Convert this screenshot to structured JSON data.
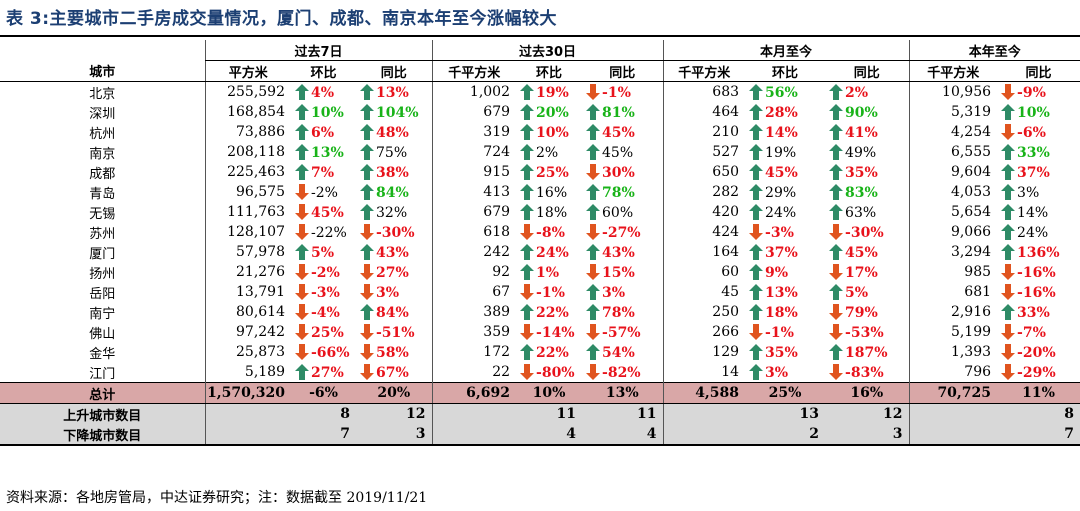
{
  "title": "表 3:主要城市二手房成交量情况，厦门、成都、南京本年至今涨幅较大",
  "groups": {
    "g7": "过去7日",
    "g30": "过去30日",
    "gm": "本月至今",
    "gy": "本年至今"
  },
  "subheaders": {
    "city": "城市",
    "c1": "平方米",
    "c2": "环比",
    "c3": "同比",
    "c4": "千平方米",
    "c5": "环比",
    "c6": "同比",
    "c7": "千平方米",
    "c8": "环比",
    "c9": "同比",
    "c10": "千平方米",
    "c11": "同比"
  },
  "colors": {
    "up": "#2e8b66",
    "down": "#e0541f",
    "red_text": "#e8121b",
    "green_text": "#18b318",
    "total_bg": "#d9a7a7",
    "count_bg": "#d8d8d8"
  },
  "rows": [
    {
      "city": "北京",
      "v7": "255,592",
      "h7": {
        "t": "4%",
        "a": "up",
        "c": "red"
      },
      "t7": {
        "t": "13%",
        "a": "up",
        "c": "red"
      },
      "v30": "1,002",
      "h30": {
        "t": "19%",
        "a": "up",
        "c": "red"
      },
      "t30": {
        "t": "-1%",
        "a": "down",
        "c": "red"
      },
      "vm": "683",
      "hm": {
        "t": "56%",
        "a": "up",
        "c": "green"
      },
      "tm": {
        "t": "2%",
        "a": "up",
        "c": "red"
      },
      "vy": "10,956",
      "ty": {
        "t": "-9%",
        "a": "down",
        "c": "red"
      }
    },
    {
      "city": "深圳",
      "v7": "168,854",
      "h7": {
        "t": "10%",
        "a": "up",
        "c": "green"
      },
      "t7": {
        "t": "104%",
        "a": "up",
        "c": "green"
      },
      "v30": "679",
      "h30": {
        "t": "20%",
        "a": "up",
        "c": "green"
      },
      "t30": {
        "t": "81%",
        "a": "up",
        "c": "green"
      },
      "vm": "464",
      "hm": {
        "t": "28%",
        "a": "up",
        "c": "red"
      },
      "tm": {
        "t": "90%",
        "a": "up",
        "c": "green"
      },
      "vy": "5,319",
      "ty": {
        "t": "10%",
        "a": "up",
        "c": "green"
      }
    },
    {
      "city": "杭州",
      "v7": "73,886",
      "h7": {
        "t": "6%",
        "a": "up",
        "c": "red"
      },
      "t7": {
        "t": "48%",
        "a": "up",
        "c": "red"
      },
      "v30": "319",
      "h30": {
        "t": "10%",
        "a": "up",
        "c": "red"
      },
      "t30": {
        "t": "45%",
        "a": "up",
        "c": "red"
      },
      "vm": "210",
      "hm": {
        "t": "14%",
        "a": "up",
        "c": "red"
      },
      "tm": {
        "t": "41%",
        "a": "up",
        "c": "red"
      },
      "vy": "4,254",
      "ty": {
        "t": "-6%",
        "a": "down",
        "c": "red"
      }
    },
    {
      "city": "南京",
      "v7": "208,118",
      "h7": {
        "t": "13%",
        "a": "up",
        "c": "green"
      },
      "t7": {
        "t": "75%",
        "a": "up",
        "c": "black"
      },
      "v30": "724",
      "h30": {
        "t": "2%",
        "a": "up",
        "c": "black"
      },
      "t30": {
        "t": "45%",
        "a": "up",
        "c": "black"
      },
      "vm": "527",
      "hm": {
        "t": "19%",
        "a": "up",
        "c": "black"
      },
      "tm": {
        "t": "49%",
        "a": "up",
        "c": "black"
      },
      "vy": "6,555",
      "ty": {
        "t": "33%",
        "a": "up",
        "c": "green"
      }
    },
    {
      "city": "成都",
      "v7": "225,463",
      "h7": {
        "t": "7%",
        "a": "up",
        "c": "red"
      },
      "t7": {
        "t": "38%",
        "a": "up",
        "c": "red"
      },
      "v30": "915",
      "h30": {
        "t": "25%",
        "a": "up",
        "c": "red"
      },
      "t30": {
        "t": "30%",
        "a": "down",
        "c": "red"
      },
      "vm": "650",
      "hm": {
        "t": "45%",
        "a": "up",
        "c": "red"
      },
      "tm": {
        "t": "35%",
        "a": "up",
        "c": "red"
      },
      "vy": "9,604",
      "ty": {
        "t": "37%",
        "a": "up",
        "c": "red"
      }
    },
    {
      "city": "青岛",
      "v7": "96,575",
      "h7": {
        "t": "-2%",
        "a": "down",
        "c": "black"
      },
      "t7": {
        "t": "84%",
        "a": "up",
        "c": "green"
      },
      "v30": "413",
      "h30": {
        "t": "16%",
        "a": "up",
        "c": "black"
      },
      "t30": {
        "t": "78%",
        "a": "up",
        "c": "green"
      },
      "vm": "282",
      "hm": {
        "t": "29%",
        "a": "up",
        "c": "black"
      },
      "tm": {
        "t": "83%",
        "a": "up",
        "c": "green"
      },
      "vy": "4,053",
      "ty": {
        "t": "3%",
        "a": "up",
        "c": "black"
      }
    },
    {
      "city": "无锡",
      "v7": "111,763",
      "h7": {
        "t": "45%",
        "a": "down",
        "c": "red"
      },
      "t7": {
        "t": "32%",
        "a": "up",
        "c": "black"
      },
      "v30": "679",
      "h30": {
        "t": "18%",
        "a": "up",
        "c": "black"
      },
      "t30": {
        "t": "60%",
        "a": "up",
        "c": "black"
      },
      "vm": "420",
      "hm": {
        "t": "24%",
        "a": "up",
        "c": "black"
      },
      "tm": {
        "t": "63%",
        "a": "up",
        "c": "black"
      },
      "vy": "5,654",
      "ty": {
        "t": "14%",
        "a": "up",
        "c": "black"
      }
    },
    {
      "city": "苏州",
      "v7": "128,107",
      "h7": {
        "t": "-22%",
        "a": "down",
        "c": "black"
      },
      "t7": {
        "t": "-30%",
        "a": "down",
        "c": "red"
      },
      "v30": "618",
      "h30": {
        "t": "-8%",
        "a": "down",
        "c": "red"
      },
      "t30": {
        "t": "-27%",
        "a": "down",
        "c": "red"
      },
      "vm": "424",
      "hm": {
        "t": "-3%",
        "a": "down",
        "c": "red"
      },
      "tm": {
        "t": "-30%",
        "a": "down",
        "c": "red"
      },
      "vy": "9,066",
      "ty": {
        "t": "24%",
        "a": "up",
        "c": "black"
      }
    },
    {
      "city": "厦门",
      "v7": "57,978",
      "h7": {
        "t": "5%",
        "a": "up",
        "c": "red"
      },
      "t7": {
        "t": "43%",
        "a": "up",
        "c": "red"
      },
      "v30": "242",
      "h30": {
        "t": "24%",
        "a": "up",
        "c": "red"
      },
      "t30": {
        "t": "43%",
        "a": "up",
        "c": "red"
      },
      "vm": "164",
      "hm": {
        "t": "37%",
        "a": "up",
        "c": "red"
      },
      "tm": {
        "t": "45%",
        "a": "up",
        "c": "red"
      },
      "vy": "3,294",
      "ty": {
        "t": "136%",
        "a": "up",
        "c": "red"
      }
    },
    {
      "city": "扬州",
      "v7": "21,276",
      "h7": {
        "t": "-2%",
        "a": "down",
        "c": "red"
      },
      "t7": {
        "t": "27%",
        "a": "down",
        "c": "red"
      },
      "v30": "92",
      "h30": {
        "t": "1%",
        "a": "up",
        "c": "red"
      },
      "t30": {
        "t": "15%",
        "a": "down",
        "c": "red"
      },
      "vm": "60",
      "hm": {
        "t": "9%",
        "a": "up",
        "c": "red"
      },
      "tm": {
        "t": "17%",
        "a": "down",
        "c": "red"
      },
      "vy": "985",
      "ty": {
        "t": "-16%",
        "a": "down",
        "c": "red"
      }
    },
    {
      "city": "岳阳",
      "v7": "13,791",
      "h7": {
        "t": "-3%",
        "a": "down",
        "c": "red"
      },
      "t7": {
        "t": "3%",
        "a": "down",
        "c": "red"
      },
      "v30": "67",
      "h30": {
        "t": "-1%",
        "a": "down",
        "c": "red"
      },
      "t30": {
        "t": "3%",
        "a": "up",
        "c": "red"
      },
      "vm": "45",
      "hm": {
        "t": "13%",
        "a": "up",
        "c": "red"
      },
      "tm": {
        "t": "5%",
        "a": "up",
        "c": "red"
      },
      "vy": "681",
      "ty": {
        "t": "-16%",
        "a": "down",
        "c": "red"
      }
    },
    {
      "city": "南宁",
      "v7": "80,614",
      "h7": {
        "t": "-4%",
        "a": "down",
        "c": "red"
      },
      "t7": {
        "t": "84%",
        "a": "up",
        "c": "red"
      },
      "v30": "389",
      "h30": {
        "t": "22%",
        "a": "up",
        "c": "red"
      },
      "t30": {
        "t": "78%",
        "a": "up",
        "c": "red"
      },
      "vm": "250",
      "hm": {
        "t": "18%",
        "a": "up",
        "c": "red"
      },
      "tm": {
        "t": "79%",
        "a": "down",
        "c": "red"
      },
      "vy": "2,916",
      "ty": {
        "t": "33%",
        "a": "up",
        "c": "red"
      }
    },
    {
      "city": "佛山",
      "v7": "97,242",
      "h7": {
        "t": "25%",
        "a": "down",
        "c": "red"
      },
      "t7": {
        "t": "-51%",
        "a": "down",
        "c": "red"
      },
      "v30": "359",
      "h30": {
        "t": "-14%",
        "a": "down",
        "c": "red"
      },
      "t30": {
        "t": "-57%",
        "a": "down",
        "c": "red"
      },
      "vm": "266",
      "hm": {
        "t": "-1%",
        "a": "down",
        "c": "red"
      },
      "tm": {
        "t": "-53%",
        "a": "down",
        "c": "red"
      },
      "vy": "5,199",
      "ty": {
        "t": "-7%",
        "a": "down",
        "c": "red"
      }
    },
    {
      "city": "金华",
      "v7": "25,873",
      "h7": {
        "t": "-66%",
        "a": "down",
        "c": "red"
      },
      "t7": {
        "t": "58%",
        "a": "down",
        "c": "red"
      },
      "v30": "172",
      "h30": {
        "t": "22%",
        "a": "up",
        "c": "red"
      },
      "t30": {
        "t": "54%",
        "a": "up",
        "c": "red"
      },
      "vm": "129",
      "hm": {
        "t": "35%",
        "a": "up",
        "c": "red"
      },
      "tm": {
        "t": "187%",
        "a": "up",
        "c": "red"
      },
      "vy": "1,393",
      "ty": {
        "t": "-20%",
        "a": "down",
        "c": "red"
      }
    },
    {
      "city": "江门",
      "v7": "5,189",
      "h7": {
        "t": "27%",
        "a": "up",
        "c": "red"
      },
      "t7": {
        "t": "67%",
        "a": "down",
        "c": "red"
      },
      "v30": "22",
      "h30": {
        "t": "-80%",
        "a": "down",
        "c": "red"
      },
      "t30": {
        "t": "-82%",
        "a": "down",
        "c": "red"
      },
      "vm": "14",
      "hm": {
        "t": "3%",
        "a": "up",
        "c": "red"
      },
      "tm": {
        "t": "-83%",
        "a": "down",
        "c": "red"
      },
      "vy": "796",
      "ty": {
        "t": "-29%",
        "a": "down",
        "c": "red"
      }
    }
  ],
  "total": {
    "city": "总计",
    "v7": "1,570,320",
    "h7": "-6%",
    "t7": "20%",
    "v30": "6,692",
    "h30": "10%",
    "t30": "13%",
    "vm": "4,588",
    "hm": "25%",
    "tm": "16%",
    "vy": "70,725",
    "ty": "11%"
  },
  "up_count": {
    "label": "上升城市数目",
    "h7": "8",
    "t7": "12",
    "h30": "11",
    "t30": "11",
    "hm": "13",
    "tm": "12",
    "ty": "8"
  },
  "down_count": {
    "label": "下降城市数目",
    "h7": "7",
    "t7": "3",
    "h30": "4",
    "t30": "4",
    "hm": "2",
    "tm": "3",
    "ty": "7"
  },
  "note": "资料来源：各地房管局，中达证券研究；注：数据截至 2019/11/21"
}
